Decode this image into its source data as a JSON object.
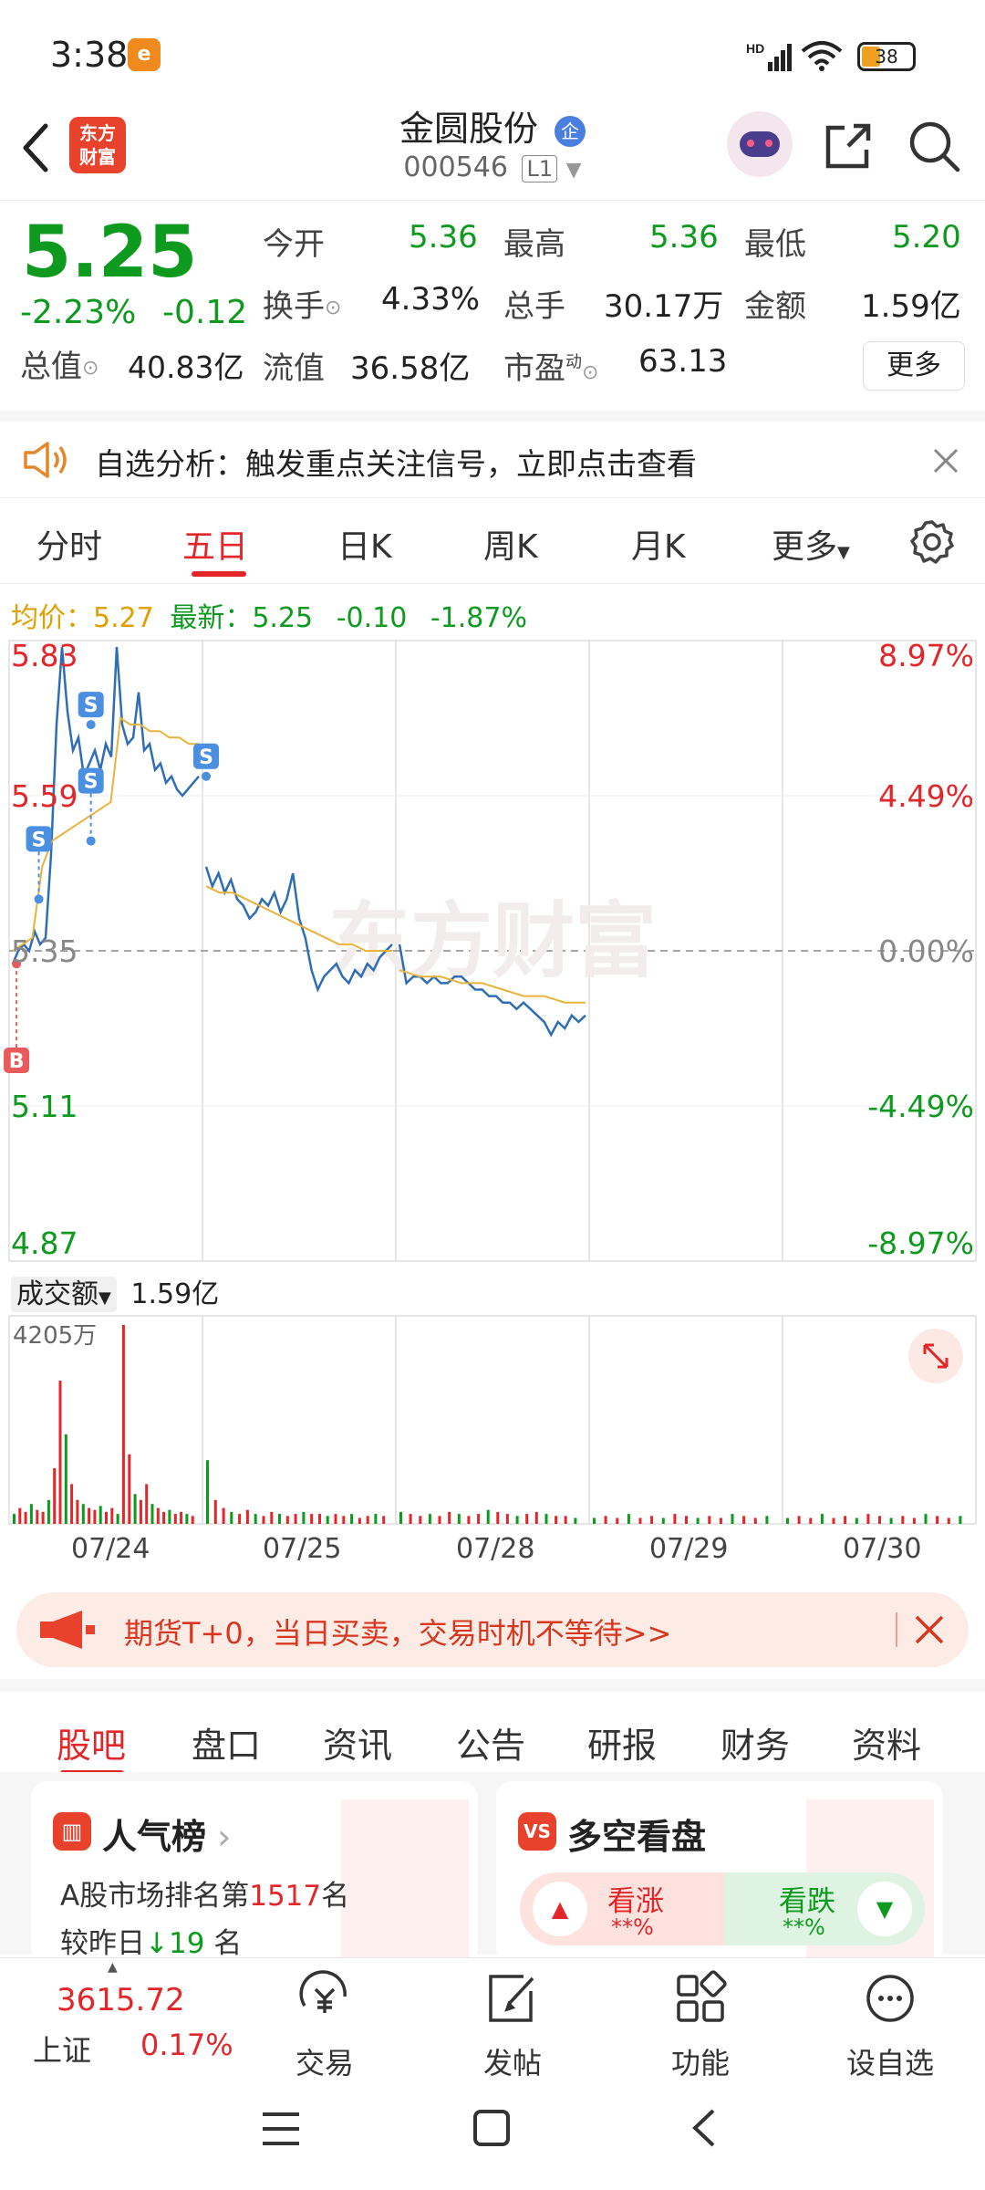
{
  "status_bar": {
    "time": "3:38",
    "battery": "38"
  },
  "header": {
    "logo_line1": "东方",
    "logo_line2": "财富",
    "stock_name": "金圆股份",
    "badge": "企",
    "stock_code": "000546",
    "level": "L1"
  },
  "quote": {
    "price": "5.25",
    "change_pct": "-2.23%",
    "change": "-0.12",
    "fields": {
      "open_label": "今开",
      "open": "5.36",
      "high_label": "最高",
      "high": "5.36",
      "low_label": "最低",
      "low": "5.20",
      "turnover_label": "换手",
      "turnover": "4.33%",
      "volume_label": "总手",
      "volume": "30.17万",
      "amount_label": "金额",
      "amount": "1.59亿",
      "mktcap_label": "总值",
      "mktcap": "40.83亿",
      "float_label": "流值",
      "float": "36.58亿",
      "pe_label": "市盈",
      "pe_sup": "动",
      "pe": "63.13"
    },
    "more_label": "更多"
  },
  "notice": {
    "text": "自选分析：触发重点关注信号，立即点击查看"
  },
  "chart_tabs": [
    "分时",
    "五日",
    "日K",
    "周K",
    "月K",
    "更多"
  ],
  "active_tab": "五日",
  "avg_row": {
    "avg_label": "均价：",
    "avg": "5.27",
    "latest_label": "最新：",
    "latest": "5.25",
    "chg": "-0.10",
    "chg_pct": "-1.87%"
  },
  "chart_data": {
    "type": "line",
    "y_left_ticks": [
      "5.83",
      "5.59",
      "5.35",
      "5.11",
      "4.87"
    ],
    "y_right_ticks": [
      "8.97%",
      "4.49%",
      "0.00%",
      "-4.49%",
      "-8.97%"
    ],
    "ylim": [
      4.87,
      5.83
    ],
    "base": 5.35,
    "watermark": "东方财富",
    "x_dates": [
      "07/24",
      "07/25",
      "07/28",
      "07/29",
      "07/30"
    ],
    "series": [
      {
        "name": "",
        "values": [
          [
            5.33,
            5.35,
            5.36,
            5.35,
            5.38,
            5.36,
            5.37,
            5.5,
            5.7,
            5.82,
            5.72,
            5.66,
            5.68,
            5.62,
            5.64,
            5.66,
            5.63,
            5.67,
            5.65,
            5.82,
            5.7,
            5.67,
            5.68,
            5.75,
            5.66,
            5.67,
            5.63,
            5.64,
            5.61,
            5.62,
            5.6,
            5.59,
            5.6,
            5.61,
            5.62
          ],
          [
            5.48,
            5.45,
            5.47,
            5.44,
            5.46,
            5.43,
            5.42,
            5.4,
            5.41,
            5.43,
            5.42,
            5.44,
            5.41,
            5.43,
            5.47,
            5.4,
            5.37,
            5.32,
            5.29,
            5.31,
            5.32,
            5.33,
            5.31,
            5.3,
            5.32,
            5.31,
            5.33,
            5.32,
            5.34,
            5.35,
            5.36
          ],
          [
            5.36,
            5.3,
            5.31,
            5.31,
            5.3,
            5.31,
            5.3,
            5.3,
            5.31,
            5.31,
            5.3,
            5.29,
            5.29,
            5.28,
            5.28,
            5.27,
            5.27,
            5.26,
            5.27,
            5.26,
            5.25,
            5.24,
            5.22,
            5.24,
            5.23,
            5.25,
            5.24,
            5.25
          ]
        ]
      },
      {
        "name": "均价",
        "values": [
          [
            5.35,
            5.36,
            5.37,
            5.48,
            5.52,
            5.53,
            5.54,
            5.55,
            5.56,
            5.57,
            5.58,
            5.71,
            5.7,
            5.7,
            5.69,
            5.69,
            5.68,
            5.68,
            5.67,
            5.67
          ],
          [
            5.45,
            5.44,
            5.44,
            5.43,
            5.42,
            5.41,
            5.4,
            5.39,
            5.38,
            5.37,
            5.36,
            5.36,
            5.35,
            5.35,
            5.35
          ],
          [
            5.32,
            5.31,
            5.31,
            5.3,
            5.3,
            5.29,
            5.28,
            5.28,
            5.27,
            5.27
          ]
        ]
      }
    ],
    "markers": [
      {
        "label": "B",
        "day": 0,
        "pos": 0.02,
        "price": 5.33,
        "color": "#e95a5a"
      },
      {
        "label": "S",
        "day": 0,
        "pos": 0.14,
        "price": 5.43,
        "color": "#4a8fe0"
      },
      {
        "label": "S",
        "day": 0,
        "pos": 0.42,
        "price": 5.7,
        "color": "#4a8fe0"
      },
      {
        "label": "S",
        "day": 0,
        "pos": 0.42,
        "price": 5.52,
        "color": "#4a8fe0"
      },
      {
        "label": "S",
        "day": 1,
        "pos": 0.0,
        "price": 5.62,
        "color": "#4a8fe0"
      }
    ]
  },
  "volume": {
    "label": "成交额",
    "value": "1.59亿",
    "max_label": "4205万",
    "bars": [
      [
        0.05,
        0.08,
        0.06,
        0.1,
        0.07,
        0.06,
        0.12,
        0.28,
        0.72,
        0.45,
        0.2,
        0.12,
        0.1,
        0.08,
        0.07,
        0.09,
        0.06,
        0.08,
        0.05,
        1.0,
        0.35,
        0.15,
        0.12,
        0.2,
        0.1,
        0.08,
        0.06,
        0.07,
        0.05,
        0.06,
        0.05,
        0.04
      ],
      [
        0.32,
        0.12,
        0.08,
        0.06,
        0.05,
        0.07,
        0.05,
        0.04,
        0.06,
        0.05,
        0.04,
        0.05,
        0.06,
        0.05,
        0.05,
        0.04,
        0.05,
        0.04,
        0.05,
        0.03,
        0.04,
        0.05,
        0.04
      ],
      [
        0.06,
        0.05,
        0.04,
        0.05,
        0.04,
        0.06,
        0.05,
        0.04,
        0.05,
        0.07,
        0.06,
        0.05,
        0.04,
        0.05,
        0.06,
        0.05,
        0.04,
        0.04,
        0.03
      ]
    ]
  },
  "promo": {
    "text": "期货T+0，当日买卖，交易时机不等待>>"
  },
  "sub_tabs": [
    "股吧",
    "盘口",
    "资讯",
    "公告",
    "研报",
    "财务",
    "资料"
  ],
  "cards": {
    "popularity": {
      "title": "人气榜",
      "line1": "A股市场排名第",
      "rank": "1517",
      "line1_end": "名",
      "line2": "较昨日",
      "delta": "19",
      "line2_end": "名"
    },
    "bullbear": {
      "title": "多空看盘",
      "up_label": "看涨",
      "up_value": "**%",
      "down_label": "看跌",
      "down_value": "**%"
    }
  },
  "market_bar": {
    "index_value": "3615.72",
    "index_name": "上证",
    "index_chg": "0.17%",
    "items": [
      "交易",
      "发帖",
      "功能",
      "设自选"
    ]
  },
  "colors": {
    "up": "#e3262a",
    "down": "#0e9a1e",
    "line": "#2f6db5",
    "avg": "#e8b33c",
    "accent": "#e3262a"
  }
}
